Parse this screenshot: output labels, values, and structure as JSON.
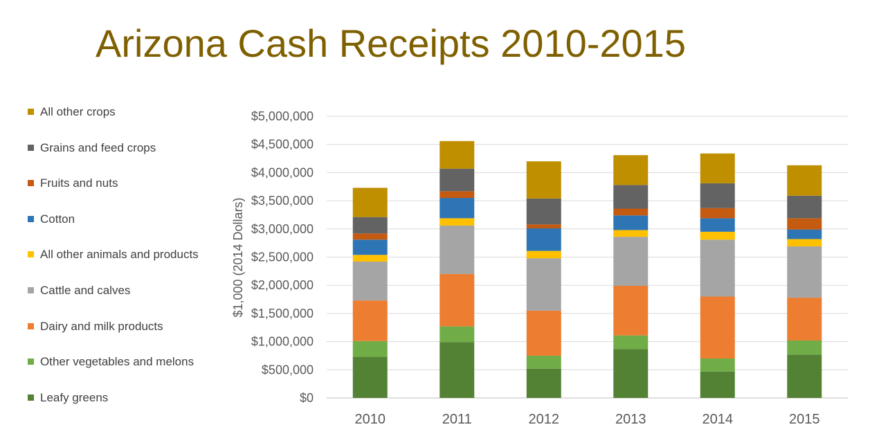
{
  "chart_data": {
    "type": "bar",
    "stacked": true,
    "title": "Arizona Cash Receipts 2010-2015",
    "ylabel": "$1,000 (2014 Dollars)",
    "xlabel": "",
    "ylim": [
      0,
      5000000
    ],
    "yticks": [
      0,
      500000,
      1000000,
      1500000,
      2000000,
      2500000,
      3000000,
      3500000,
      4000000,
      4500000,
      5000000
    ],
    "ytick_labels": [
      "$0",
      "$500,000",
      "$1,000,000",
      "$1,500,000",
      "$2,000,000",
      "$2,500,000",
      "$3,000,000",
      "$3,500,000",
      "$4,000,000",
      "$4,500,000",
      "$5,000,000"
    ],
    "grid": true,
    "legend_position": "left",
    "categories": [
      "2010",
      "2011",
      "2012",
      "2013",
      "2014",
      "2015"
    ],
    "series": [
      {
        "name": "Leafy greens",
        "color": "#548235",
        "values": [
          730000,
          990000,
          520000,
          870000,
          470000,
          770000
        ]
      },
      {
        "name": "Other vegetables and melons",
        "color": "#70ad47",
        "values": [
          280000,
          280000,
          230000,
          240000,
          230000,
          250000
        ]
      },
      {
        "name": "Dairy and milk products",
        "color": "#ed7d31",
        "values": [
          720000,
          930000,
          800000,
          880000,
          1100000,
          760000
        ]
      },
      {
        "name": "Cattle and calves",
        "color": "#a5a5a5",
        "values": [
          690000,
          860000,
          930000,
          870000,
          1010000,
          910000
        ]
      },
      {
        "name": "All other animals and products",
        "color": "#ffc000",
        "values": [
          120000,
          130000,
          130000,
          120000,
          140000,
          130000
        ]
      },
      {
        "name": "Cotton",
        "color": "#2e75b6",
        "values": [
          270000,
          360000,
          400000,
          260000,
          240000,
          170000
        ]
      },
      {
        "name": "Fruits and nuts",
        "color": "#c55a11",
        "values": [
          110000,
          120000,
          70000,
          120000,
          180000,
          200000
        ]
      },
      {
        "name": "Grains and feed crops",
        "color": "#636363",
        "values": [
          290000,
          400000,
          460000,
          420000,
          440000,
          400000
        ]
      },
      {
        "name": "All other crops",
        "color": "#bf8f00",
        "values": [
          520000,
          490000,
          660000,
          530000,
          530000,
          540000
        ]
      }
    ]
  }
}
